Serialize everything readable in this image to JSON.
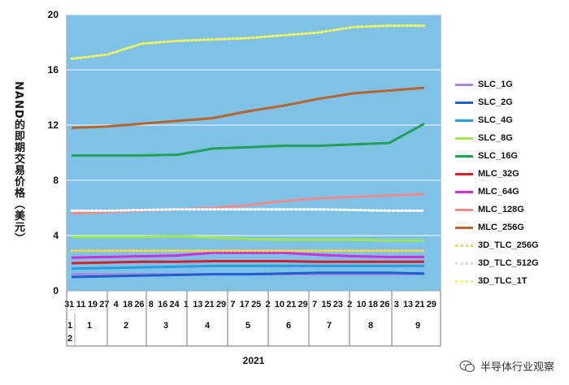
{
  "chart_data": {
    "type": "line",
    "ylabel": "NAND的即期交易价格（美元）",
    "ylim": [
      0,
      20
    ],
    "yticks": [
      "0",
      "4",
      "8",
      "12",
      "16",
      "20"
    ],
    "grid": true,
    "legend_position": "right",
    "year_label": "2021",
    "x_day_labels": [
      "31",
      "11",
      "19",
      "27",
      "4",
      "18",
      "26",
      "8",
      "16",
      "24",
      "1",
      "13",
      "21",
      "29",
      "7",
      "17",
      "25",
      "2",
      "10",
      "21",
      "29",
      "7",
      "15",
      "23",
      "2",
      "10",
      "18",
      "26",
      "3",
      "13",
      "21",
      "29"
    ],
    "x_month_labels": [
      "1 2",
      "1",
      "2",
      "3",
      "4",
      "5",
      "6",
      "7",
      "8",
      "9"
    ],
    "series": [
      {
        "name": "SLC_1G",
        "color": "#a889e0",
        "style": "solid",
        "values": [
          1.2,
          1.2,
          1.2,
          1.2,
          1.2,
          1.2,
          1.2,
          1.2,
          1.2,
          1.2,
          1.2
        ]
      },
      {
        "name": "SLC_2G",
        "color": "#1f5fcf",
        "style": "solid",
        "values": [
          1.0,
          1.05,
          1.1,
          1.15,
          1.2,
          1.2,
          1.25,
          1.3,
          1.3,
          1.3,
          1.25
        ]
      },
      {
        "name": "SLC_4G",
        "color": "#2a9ce0",
        "style": "solid",
        "values": [
          1.6,
          1.65,
          1.7,
          1.75,
          1.8,
          1.8,
          1.8,
          1.8,
          1.8,
          1.8,
          1.8
        ]
      },
      {
        "name": "SLC_8G",
        "color": "#9ee64c",
        "style": "solid",
        "values": [
          3.9,
          3.9,
          3.9,
          3.95,
          3.85,
          3.75,
          3.7,
          3.7,
          3.7,
          3.65,
          3.65
        ]
      },
      {
        "name": "SLC_16G",
        "color": "#22a055",
        "style": "solid",
        "values": [
          9.8,
          9.8,
          9.8,
          9.85,
          10.3,
          10.4,
          10.5,
          10.5,
          10.6,
          10.7,
          12.1
        ]
      },
      {
        "name": "MLC_32G",
        "color": "#d81e2a",
        "style": "solid",
        "values": [
          2.0,
          2.05,
          2.1,
          2.1,
          2.15,
          2.15,
          2.15,
          2.1,
          2.1,
          2.1,
          2.1
        ]
      },
      {
        "name": "MLC_64G",
        "color": "#d02fd6",
        "style": "solid",
        "values": [
          2.4,
          2.45,
          2.5,
          2.55,
          2.75,
          2.75,
          2.75,
          2.6,
          2.5,
          2.45,
          2.45
        ]
      },
      {
        "name": "MLC_128G",
        "color": "#f08a8a",
        "style": "solid",
        "values": [
          5.6,
          5.7,
          5.8,
          5.9,
          6.0,
          6.2,
          6.5,
          6.7,
          6.8,
          6.9,
          7.0
        ]
      },
      {
        "name": "MLC_256G",
        "color": "#b8642a",
        "style": "solid",
        "values": [
          11.8,
          11.9,
          12.1,
          12.3,
          12.5,
          13.0,
          13.4,
          13.9,
          14.3,
          14.5,
          14.7
        ]
      },
      {
        "name": "3D_TLC_256G",
        "color": "#f2d84a",
        "style": "dotted",
        "values": [
          2.9,
          2.9,
          2.9,
          2.9,
          2.9,
          2.9,
          2.9,
          2.9,
          2.9,
          2.9,
          2.9
        ]
      },
      {
        "name": "3D_TLC_512G",
        "color": "#ffffff",
        "style": "dotted",
        "values": [
          5.8,
          5.8,
          5.85,
          5.9,
          5.9,
          5.9,
          5.9,
          5.9,
          5.85,
          5.8,
          5.8
        ]
      },
      {
        "name": "3D_TLC_1T",
        "color": "#f2f55a",
        "style": "dotted",
        "values": [
          16.8,
          17.1,
          17.9,
          18.1,
          18.2,
          18.3,
          18.5,
          18.7,
          19.1,
          19.2,
          19.2
        ]
      }
    ],
    "x": [
      0,
      1,
      2,
      3,
      4,
      5,
      6,
      7,
      8,
      9,
      10
    ]
  },
  "watermark": {
    "text": "半导体行业观察",
    "icon": "wechat-icon"
  }
}
